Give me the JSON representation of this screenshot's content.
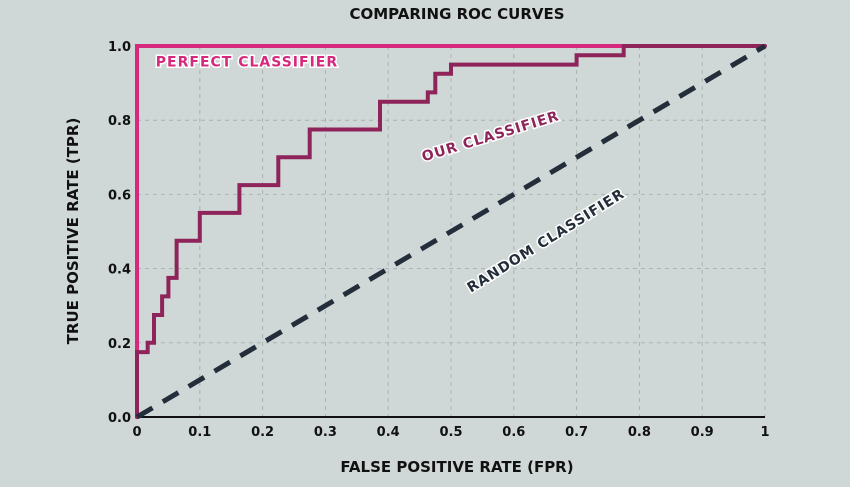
{
  "chart_data": {
    "type": "line",
    "title": "COMPARING ROC CURVES",
    "xlabel": "FALSE POSITIVE RATE (FPR)",
    "ylabel": "TRUE POSITIVE RATE (TPR)",
    "xlim": [
      0,
      1
    ],
    "ylim": [
      0,
      1
    ],
    "x_ticks": [
      {
        "v": 0,
        "label": "0"
      },
      {
        "v": 0.1,
        "label": "0.1"
      },
      {
        "v": 0.2,
        "label": "0.2"
      },
      {
        "v": 0.3,
        "label": "0.3"
      },
      {
        "v": 0.4,
        "label": "0.4"
      },
      {
        "v": 0.5,
        "label": "0.5"
      },
      {
        "v": 0.6,
        "label": "0.6"
      },
      {
        "v": 0.7,
        "label": "0.7"
      },
      {
        "v": 0.8,
        "label": "0.8"
      },
      {
        "v": 0.9,
        "label": "0.9"
      },
      {
        "v": 1,
        "label": "1"
      }
    ],
    "y_ticks": [
      {
        "v": 0,
        "label": "0.0"
      },
      {
        "v": 0.2,
        "label": "0.2"
      },
      {
        "v": 0.4,
        "label": "0.4"
      },
      {
        "v": 0.6,
        "label": "0.6"
      },
      {
        "v": 0.8,
        "label": "0.8"
      },
      {
        "v": 1,
        "label": "1.0"
      }
    ],
    "grid": true,
    "series": [
      {
        "name": "PERFECT CLASSIFIER",
        "color": "#d6297e",
        "dash": false,
        "x": [
          0,
          0,
          0.77
        ],
        "y": [
          0,
          1,
          1
        ]
      },
      {
        "name": "OUR CLASSIFIER",
        "color": "#8e2459",
        "dash": false,
        "x": [
          0,
          0,
          0.005,
          0.005,
          0.017,
          0.017,
          0.027,
          0.027,
          0.04,
          0.04,
          0.05,
          0.05,
          0.063,
          0.063,
          0.1,
          0.1,
          0.163,
          0.163,
          0.225,
          0.225,
          0.275,
          0.275,
          0.387,
          0.387,
          0.463,
          0.463,
          0.475,
          0.475,
          0.5,
          0.5,
          0.7,
          0.7,
          0.775,
          0.775,
          1
        ],
        "y": [
          0,
          0.175,
          0.175,
          0.175,
          0.175,
          0.2,
          0.2,
          0.275,
          0.275,
          0.325,
          0.325,
          0.375,
          0.375,
          0.475,
          0.475,
          0.55,
          0.55,
          0.625,
          0.625,
          0.7,
          0.7,
          0.775,
          0.775,
          0.85,
          0.85,
          0.875,
          0.875,
          0.925,
          0.925,
          0.95,
          0.95,
          0.975,
          0.975,
          1,
          1
        ]
      },
      {
        "name": "RANDOM CLASSIFIER",
        "color": "#232e3a",
        "dash": true,
        "x": [
          0,
          1
        ],
        "y": [
          0,
          1
        ]
      }
    ],
    "annotations": [
      {
        "text": "PERFECT CLASSIFIER",
        "color": "#d6297e"
      },
      {
        "text": "OUR CLASSIFIER",
        "color": "#8e2459"
      },
      {
        "text": "RANDOM CLASSIFIER",
        "color": "#232e3a"
      }
    ]
  }
}
